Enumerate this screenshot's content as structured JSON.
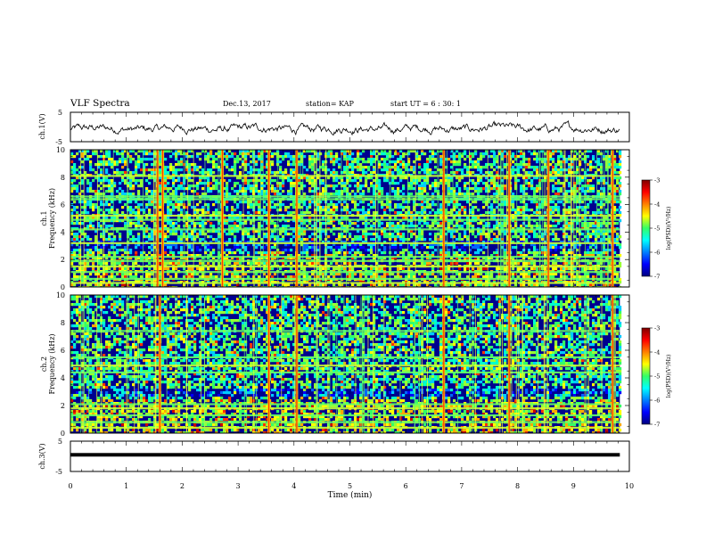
{
  "header": {
    "title": "VLF Spectra",
    "date": "Dec.13, 2017",
    "station": "station= KAP",
    "start": "start  UT =  6 : 30: 1"
  },
  "chart_data": [
    {
      "type": "line",
      "panel": "ch1-waveform",
      "ylabel": "ch.1(V)",
      "ylim": [
        -5,
        5
      ],
      "yticks": [
        "5",
        "-5"
      ],
      "xlim": [
        0,
        10
      ],
      "x_extent": [
        0,
        9.83
      ],
      "description_series": "noisy waveform around -0.5 V with amplitude about 1.5 V",
      "color": "#000000"
    },
    {
      "type": "heatmap",
      "panel": "ch1-spectrogram",
      "ylabel": "ch.1\nFrequency (kHz)",
      "ylabel_top": "ch.1",
      "ylabel_bottom": "Frequency (kHz)",
      "ylim": [
        0,
        10
      ],
      "yticks": [
        "0",
        "2",
        "4",
        "6",
        "8",
        "10"
      ],
      "xlim": [
        0,
        10
      ],
      "x_extent": [
        0,
        9.83
      ],
      "strong_time_lines_min": [
        1.56,
        1.65,
        2.72,
        3.55,
        4.05,
        6.68,
        7.85,
        8.55,
        9.7
      ],
      "horizontal_bands_khz": [
        0.3,
        0.6,
        1.1,
        1.5,
        1.9,
        2.2,
        3.2,
        4.2,
        4.9,
        5.2,
        6.4,
        6.6,
        8.1
      ]
    },
    {
      "type": "heatmap",
      "panel": "ch2-spectrogram",
      "ylabel_top": "ch.2",
      "ylabel_bottom": "Frequency (kHz)",
      "ylim": [
        0,
        10
      ],
      "yticks": [
        "0",
        "2",
        "4",
        "6",
        "8",
        "10"
      ],
      "xlim": [
        0,
        10
      ],
      "x_extent": [
        0,
        9.83
      ],
      "strong_time_lines_min": [
        1.6,
        3.55,
        4.05,
        6.68,
        7.85,
        9.7
      ],
      "horizontal_bands_khz": [
        0.4,
        0.8,
        1.3,
        1.8,
        2.1,
        4.4,
        4.9,
        5.5,
        7.4
      ]
    },
    {
      "type": "line",
      "panel": "ch3-waveform",
      "ylabel": "ch.3(V)",
      "ylim": [
        -5,
        5
      ],
      "yticks": [
        "5",
        "-5"
      ],
      "xlim": [
        0,
        10
      ],
      "x_extent": [
        0,
        9.83
      ],
      "constant_value": 0.5,
      "xlabel": "Time (min)",
      "xticks": [
        "0",
        "1",
        "2",
        "3",
        "4",
        "5",
        "6",
        "7",
        "8",
        "9",
        "10"
      ]
    }
  ],
  "colorbar": {
    "label": "log(PSD)(V²/Hz)",
    "range": [
      -7,
      -3
    ],
    "ticks": [
      "-3",
      "-4",
      "-5",
      "-6",
      "-7"
    ]
  },
  "colors": {
    "low": "#00007f",
    "mid_low": "#0000ff",
    "mid": "#00ffff",
    "mid_high": "#ffff00",
    "high": "#ff0000",
    "max": "#7f0000"
  }
}
